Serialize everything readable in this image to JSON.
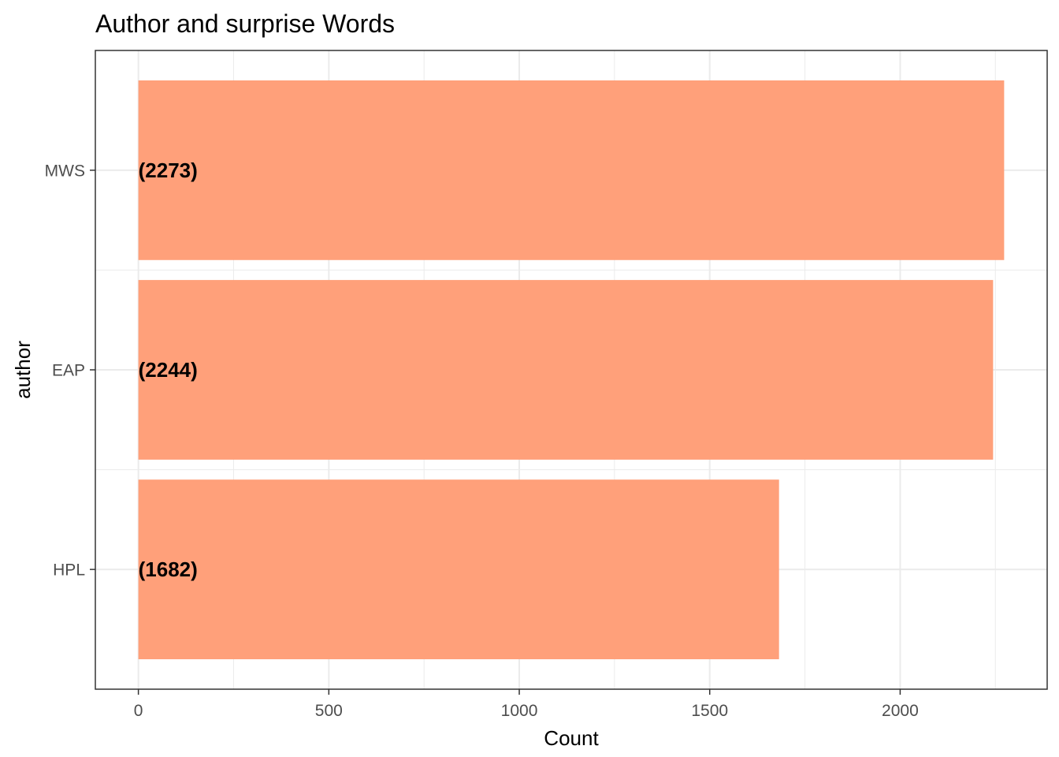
{
  "chart_data": {
    "type": "bar",
    "orientation": "horizontal",
    "title": "Author and surprise Words",
    "xlabel": "Count",
    "ylabel": "author",
    "categories": [
      "MWS",
      "EAP",
      "HPL"
    ],
    "values": [
      2273,
      2244,
      1682
    ],
    "data_labels": [
      "(2273)",
      "(2244)",
      "(1682)"
    ],
    "xlim": [
      -113,
      2386
    ],
    "x_ticks": [
      0,
      500,
      1000,
      1500,
      2000
    ],
    "x_tick_labels": [
      "0",
      "500",
      "1000",
      "1500",
      "2000"
    ],
    "x_minor_ticks": [
      250,
      750,
      1250,
      1750,
      2250
    ],
    "grid": true,
    "legend": "none",
    "bar_color": "#FFA07A",
    "grid_color": "#ebebeb",
    "panel_border_color": "#333333"
  }
}
